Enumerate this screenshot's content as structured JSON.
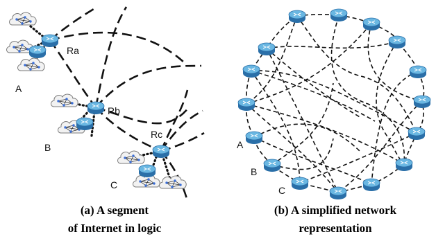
{
  "panel_a": {
    "caption_line1": "(a) A segment",
    "caption_line2": "of Internet in logic",
    "routers": [
      "Ra",
      "Rb",
      "Rc"
    ],
    "groups": [
      "A",
      "B",
      "C"
    ]
  },
  "panel_b": {
    "caption_line1": "(b) A simplified network",
    "caption_line2": "representation",
    "labels": [
      "A",
      "B",
      "C"
    ]
  },
  "colors": {
    "router_top": "#6ab7e2",
    "router_body": "#2a6fa8",
    "cloud": "#f2f2f2",
    "link": "#111111"
  },
  "icons": [
    "router-icon",
    "cloud-subnet-icon"
  ]
}
